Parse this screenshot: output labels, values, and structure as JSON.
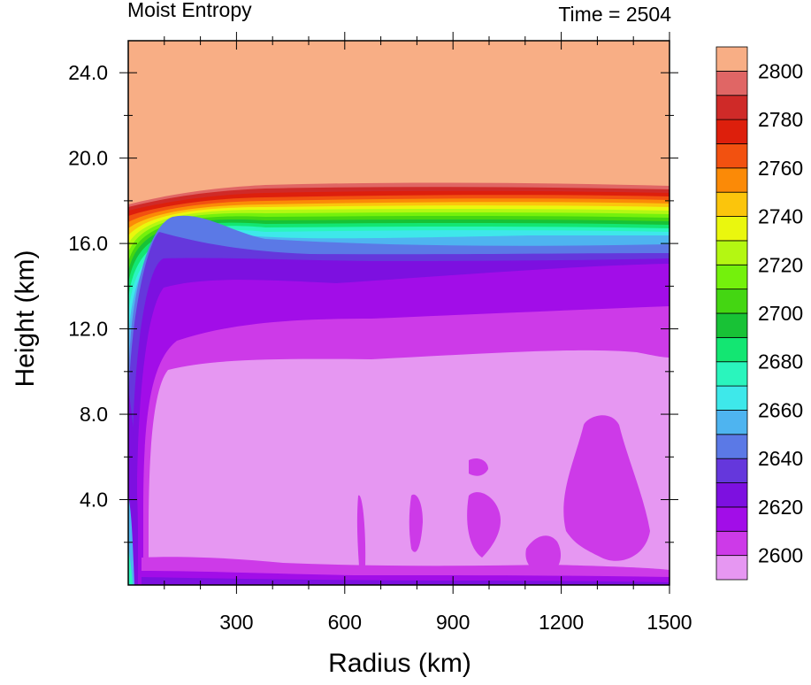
{
  "header": {
    "title_left": "Moist Entropy",
    "title_right": "Time = 2504"
  },
  "chart_data": {
    "type": "heatmap",
    "title": "Moist Entropy",
    "xlabel": "Radius (km)",
    "ylabel": "Height (km)",
    "xlim": [
      0,
      1500
    ],
    "ylim": [
      0,
      25.5
    ],
    "x_ticks": [
      "300",
      "600",
      "900",
      "1200",
      "1500"
    ],
    "x_tick_values": [
      300,
      600,
      900,
      1200,
      1500
    ],
    "y_ticks": [
      "4.0",
      "8.0",
      "12.0",
      "16.0",
      "20.0",
      "24.0"
    ],
    "y_tick_values": [
      4,
      8,
      12,
      16,
      20,
      24
    ],
    "colorbar": {
      "levels": [
        2600,
        2610,
        2620,
        2630,
        2640,
        2650,
        2660,
        2670,
        2680,
        2690,
        2700,
        2710,
        2720,
        2730,
        2740,
        2750,
        2760,
        2770,
        2780,
        2790,
        2800,
        2810
      ],
      "colors": [
        "#e697f2",
        "#cd3ae8",
        "#a20de8",
        "#7d10e0",
        "#6537dc",
        "#5b79e6",
        "#4eb4f0",
        "#3ee8ea",
        "#2af5bd",
        "#13e672",
        "#18c236",
        "#44d612",
        "#74f10c",
        "#b4f712",
        "#eaf70e",
        "#fbc50c",
        "#fb8a07",
        "#f25110",
        "#dd1f0c",
        "#cf2a28",
        "#e06665",
        "#f8ae85"
      ],
      "tick_labels": [
        "2600",
        "2620",
        "2640",
        "2660",
        "2680",
        "2700",
        "2720",
        "2740",
        "2760",
        "2780",
        "2800"
      ]
    },
    "bands": [
      {
        "value": 2600,
        "description": "lower troposphere, surface to ~10.6 km"
      },
      {
        "value": 2610,
        "description": "~10.6 to ~12.5 km"
      },
      {
        "value": 2620,
        "description": "~12.5 to ~14.5 km"
      },
      {
        "value": 2630,
        "description": "~14.5 to ~15.5 km"
      },
      {
        "value": 2640,
        "description": "~15.5 to ~16 km"
      },
      {
        "value": 2650,
        "description": "~16 to ~16.5 km"
      },
      {
        "value": 2810,
        "description": "stratosphere above ~18.7 km"
      }
    ]
  }
}
